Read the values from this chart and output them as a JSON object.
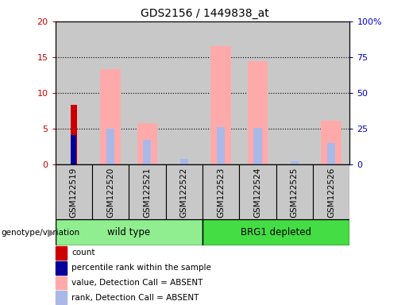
{
  "title": "GDS2156 / 1449838_at",
  "samples": [
    "GSM122519",
    "GSM122520",
    "GSM122521",
    "GSM122522",
    "GSM122523",
    "GSM122524",
    "GSM122525",
    "GSM122526"
  ],
  "count_values": [
    8.3,
    0,
    0,
    0,
    0,
    0,
    0,
    0
  ],
  "percentile_rank_values": [
    4.1,
    0,
    0,
    0,
    0,
    0,
    0,
    0
  ],
  "value_absent": [
    0,
    13.3,
    5.8,
    0,
    16.5,
    14.5,
    0,
    6.1
  ],
  "rank_absent": [
    0,
    5.0,
    3.5,
    0.8,
    5.3,
    5.1,
    0.5,
    3.0
  ],
  "ylim_left": [
    0,
    20
  ],
  "ylim_right": [
    0,
    100
  ],
  "yticks_left": [
    0,
    5,
    10,
    15,
    20
  ],
  "yticks_right": [
    0,
    25,
    50,
    75,
    100
  ],
  "yticklabels_right": [
    "0",
    "25",
    "50",
    "75",
    "100%"
  ],
  "left_tick_color": "#cc0000",
  "right_tick_color": "#0000cc",
  "count_color": "#cc0000",
  "percentile_color": "#000099",
  "value_absent_color": "#ffaaaa",
  "rank_absent_color": "#aab8e8",
  "bg_sample": "#c8c8c8",
  "wt_color": "#90ee90",
  "brg_color": "#44dd44",
  "legend_items": [
    {
      "label": "count",
      "color": "#cc0000"
    },
    {
      "label": "percentile rank within the sample",
      "color": "#000099"
    },
    {
      "label": "value, Detection Call = ABSENT",
      "color": "#ffaaaa"
    },
    {
      "label": "rank, Detection Call = ABSENT",
      "color": "#aab8e8"
    }
  ],
  "genotype_label": "genotype/variation",
  "arrow_color": "#888888"
}
